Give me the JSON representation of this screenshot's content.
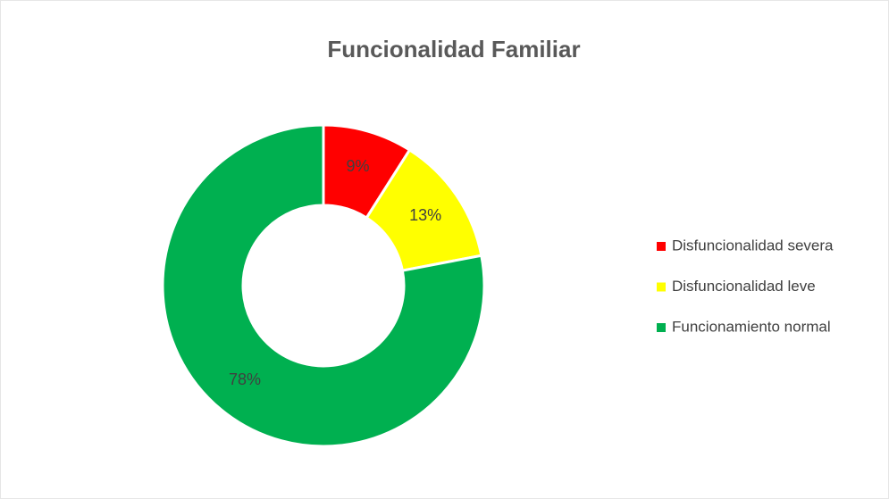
{
  "chart_data": {
    "type": "doughnut",
    "title": "Funcionalidad Familiar",
    "categories": [
      "Disfuncionalidad severa",
      "Disfuncionalidad leve",
      "Funcionamiento normal"
    ],
    "values": [
      9,
      13,
      78
    ],
    "value_labels": [
      "9%",
      "13%",
      "78%"
    ],
    "colors": [
      "#ff0000",
      "#ffff00",
      "#00b050"
    ],
    "legend": "right"
  }
}
